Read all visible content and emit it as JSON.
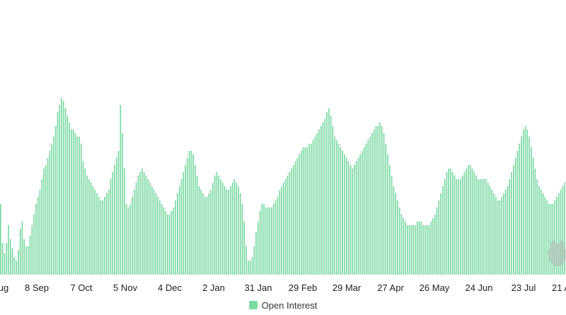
{
  "chart_data": {
    "type": "bar",
    "title": "",
    "xlabel": "",
    "ylabel": "",
    "grid": false,
    "legend_position": "bottom-center",
    "x_tick_labels": [
      "ug",
      "8 Sep",
      "7 Oct",
      "5 Nov",
      "4 Dec",
      "2 Jan",
      "31 Jan",
      "29 Feb",
      "29 Mar",
      "27 Apr",
      "26 May",
      "24 Jun",
      "23 Jul",
      "21 A"
    ],
    "ylim": [
      0,
      100
    ],
    "series": [
      {
        "name": "Open Interest",
        "color": "#7ddaa5",
        "values": [
          40,
          18,
          12,
          18,
          28,
          20,
          15,
          10,
          8,
          14,
          26,
          30,
          20,
          16,
          16,
          22,
          28,
          34,
          40,
          44,
          48,
          54,
          60,
          62,
          66,
          70,
          74,
          78,
          84,
          92,
          96,
          100,
          98,
          94,
          90,
          86,
          82,
          82,
          80,
          78,
          78,
          74,
          64,
          60,
          56,
          54,
          52,
          50,
          48,
          46,
          44,
          42,
          42,
          44,
          46,
          48,
          54,
          58,
          62,
          66,
          70,
          96,
          80,
          60,
          40,
          38,
          40,
          44,
          48,
          52,
          56,
          58,
          60,
          58,
          56,
          54,
          52,
          50,
          48,
          46,
          44,
          42,
          40,
          38,
          36,
          34,
          34,
          36,
          38,
          42,
          46,
          50,
          54,
          58,
          62,
          66,
          70,
          70,
          68,
          62,
          56,
          50,
          48,
          46,
          44,
          44,
          46,
          48,
          52,
          56,
          58,
          56,
          54,
          52,
          50,
          48,
          48,
          50,
          52,
          54,
          52,
          50,
          46,
          40,
          30,
          16,
          8,
          8,
          10,
          16,
          24,
          30,
          36,
          40,
          40,
          38,
          38,
          38,
          38,
          40,
          42,
          44,
          48,
          50,
          52,
          54,
          56,
          58,
          60,
          62,
          64,
          66,
          68,
          70,
          72,
          72,
          72,
          74,
          74,
          76,
          78,
          80,
          82,
          84,
          86,
          88,
          92,
          94,
          90,
          84,
          78,
          76,
          74,
          72,
          70,
          68,
          66,
          64,
          62,
          60,
          62,
          64,
          66,
          68,
          70,
          72,
          74,
          76,
          78,
          80,
          82,
          84,
          84,
          86,
          84,
          80,
          74,
          68,
          62,
          56,
          50,
          46,
          42,
          38,
          34,
          32,
          30,
          28,
          28,
          28,
          28,
          28,
          30,
          30,
          30,
          28,
          28,
          28,
          28,
          30,
          32,
          34,
          38,
          42,
          46,
          50,
          54,
          58,
          60,
          60,
          58,
          56,
          54,
          54,
          54,
          56,
          58,
          60,
          62,
          62,
          60,
          58,
          56,
          54,
          54,
          54,
          54,
          54,
          52,
          50,
          48,
          46,
          44,
          42,
          42,
          44,
          46,
          48,
          50,
          54,
          58,
          62,
          66,
          70,
          74,
          78,
          82,
          84,
          82,
          78,
          72,
          66,
          60,
          54,
          50,
          48,
          46,
          44,
          42,
          40,
          40,
          40,
          42,
          44,
          46,
          48,
          50,
          52
        ]
      }
    ]
  },
  "watermark": {
    "icon": "bear-head-icon",
    "color": "#b0b8b4"
  }
}
